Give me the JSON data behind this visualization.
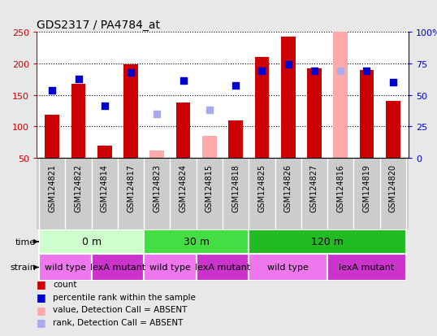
{
  "title": "GDS2317 / PA4784_at",
  "samples": [
    "GSM124821",
    "GSM124822",
    "GSM124814",
    "GSM124817",
    "GSM124823",
    "GSM124824",
    "GSM124815",
    "GSM124818",
    "GSM124825",
    "GSM124826",
    "GSM124827",
    "GSM124816",
    "GSM124819",
    "GSM124820"
  ],
  "count_values": [
    118,
    168,
    70,
    198,
    null,
    138,
    null,
    110,
    210,
    242,
    192,
    null,
    190,
    140
  ],
  "count_absent": [
    null,
    null,
    null,
    null,
    62,
    null,
    85,
    null,
    null,
    null,
    null,
    250,
    null,
    null
  ],
  "percentile_values": [
    157,
    175,
    132,
    186,
    null,
    173,
    null,
    165,
    188,
    198,
    188,
    null,
    188,
    170
  ],
  "percentile_absent": [
    null,
    null,
    null,
    null,
    120,
    null,
    126,
    null,
    null,
    null,
    null,
    188,
    null,
    null
  ],
  "ylim_left": [
    50,
    250
  ],
  "ylim_right": [
    0,
    100
  ],
  "yticks_left": [
    50,
    100,
    150,
    200,
    250
  ],
  "yticks_right": [
    0,
    25,
    50,
    75,
    100
  ],
  "ytick_labels_left": [
    "50",
    "100",
    "150",
    "200",
    "250"
  ],
  "ytick_labels_right": [
    "0",
    "25",
    "50",
    "75",
    "100%"
  ],
  "time_groups": [
    {
      "label": "0 m",
      "start": 0,
      "end": 4,
      "color": "#ccffcc"
    },
    {
      "label": "30 m",
      "start": 4,
      "end": 8,
      "color": "#44dd44"
    },
    {
      "label": "120 m",
      "start": 8,
      "end": 14,
      "color": "#22bb22"
    }
  ],
  "strain_groups": [
    {
      "label": "wild type",
      "start": 0,
      "end": 2,
      "color": "#ee77ee"
    },
    {
      "label": "lexA mutant",
      "start": 2,
      "end": 4,
      "color": "#cc33cc"
    },
    {
      "label": "wild type",
      "start": 4,
      "end": 6,
      "color": "#ee77ee"
    },
    {
      "label": "lexA mutant",
      "start": 6,
      "end": 8,
      "color": "#cc33cc"
    },
    {
      "label": "wild type",
      "start": 8,
      "end": 11,
      "color": "#ee77ee"
    },
    {
      "label": "lexA mutant",
      "start": 11,
      "end": 14,
      "color": "#cc33cc"
    }
  ],
  "bar_width": 0.55,
  "count_color": "#cc0000",
  "count_absent_color": "#ffaaaa",
  "percentile_color": "#0000cc",
  "percentile_absent_color": "#aaaaee",
  "percentile_marker_size": 40,
  "bar_bottom": 50,
  "grid_color": "#000000",
  "label_bg_color": "#cccccc",
  "plot_bg_color": "#ffffff",
  "fig_bg_color": "#e8e8e8"
}
